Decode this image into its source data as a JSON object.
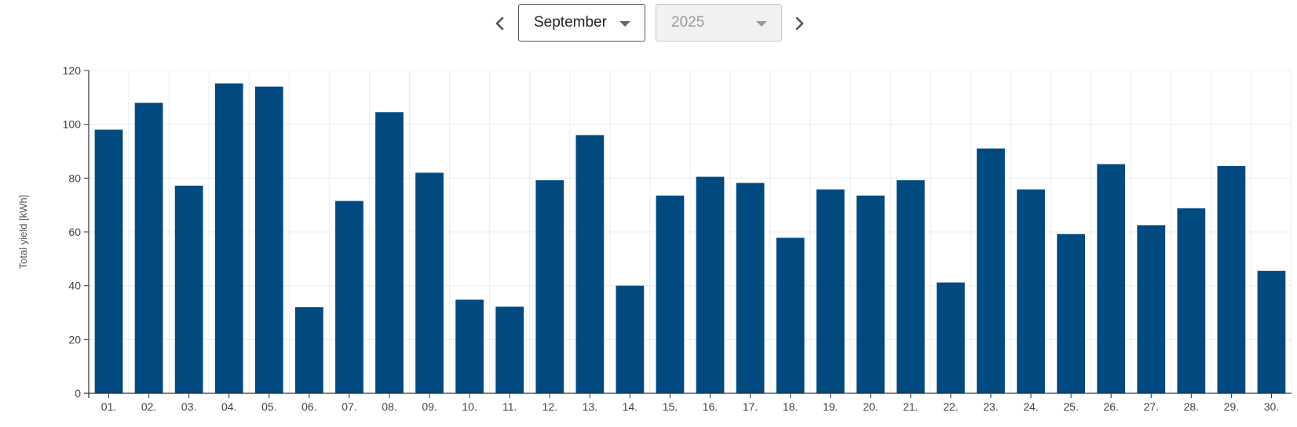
{
  "controls": {
    "prev_icon": "chevron-left-icon",
    "next_icon": "chevron-right-icon",
    "month_selected": "September",
    "year_selected": "2025"
  },
  "chart_data": {
    "type": "bar",
    "ylabel": "Total yield [kWh]",
    "ylim": [
      0,
      120
    ],
    "yticks": [
      0,
      20,
      40,
      60,
      80,
      100,
      120
    ],
    "grid": true,
    "bar_color": "#004a80",
    "categories": [
      "01.",
      "02.",
      "03.",
      "04.",
      "05.",
      "06.",
      "07.",
      "08.",
      "09.",
      "10.",
      "11.",
      "12.",
      "13.",
      "14.",
      "15.",
      "16.",
      "17.",
      "18.",
      "19.",
      "20.",
      "21.",
      "22.",
      "23.",
      "24.",
      "25.",
      "26.",
      "27.",
      "28.",
      "29.",
      "30."
    ],
    "values": [
      98,
      108,
      77.2,
      115.2,
      114,
      32,
      71.5,
      104.5,
      82,
      34.8,
      32.2,
      79.2,
      96,
      40,
      73.5,
      80.5,
      78.2,
      57.8,
      75.8,
      73.5,
      79.2,
      41.2,
      91,
      75.8,
      59.2,
      85.2,
      62.5,
      68.8,
      84.5,
      45.5
    ]
  }
}
